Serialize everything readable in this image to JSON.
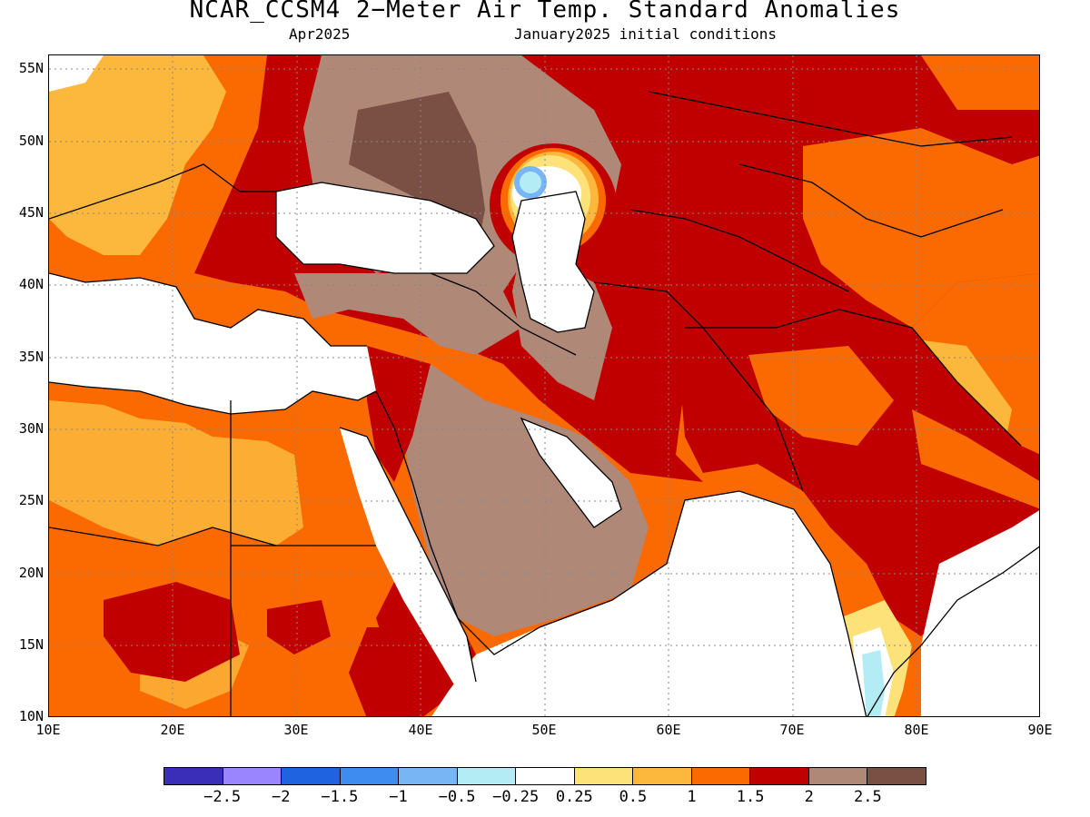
{
  "title": "NCAR_CCSM4 2−Meter Air Temp. Standard Anomalies",
  "subtitle_left": "Apr2025",
  "subtitle_right": "January2025 initial conditions",
  "lat_labels": [
    "55N",
    "50N",
    "45N",
    "40N",
    "35N",
    "30N",
    "25N",
    "20N",
    "15N",
    "10N"
  ],
  "lon_labels": [
    "10E",
    "20E",
    "30E",
    "40E",
    "50E",
    "60E",
    "70E",
    "80E",
    "90E"
  ],
  "colorbar": {
    "colors": [
      "#3a2eb8",
      "#9b85ff",
      "#1f63e0",
      "#3e8cf0",
      "#77b5f5",
      "#b4ecf5",
      "#ffffff",
      "#fde27a",
      "#fcb83c",
      "#fa6a00",
      "#c00000",
      "#b08878",
      "#7a5045"
    ],
    "labels": [
      "−2.5",
      "−2",
      "−1.5",
      "−1",
      "−0.5",
      "−0.25",
      "0.25",
      "0.5",
      "1",
      "1.5",
      "2",
      "2.5"
    ]
  },
  "map_colors": {
    "white": "#ffffff",
    "light_orange": "#fcb83c",
    "orange": "#fa6a00",
    "red": "#c00000",
    "brown": "#b08878",
    "dark_brown": "#7a5045",
    "yellow": "#fde27a",
    "light_blue": "#b4ecf5",
    "blue": "#77b5f5",
    "ocean_gray_lines": "#000000"
  }
}
